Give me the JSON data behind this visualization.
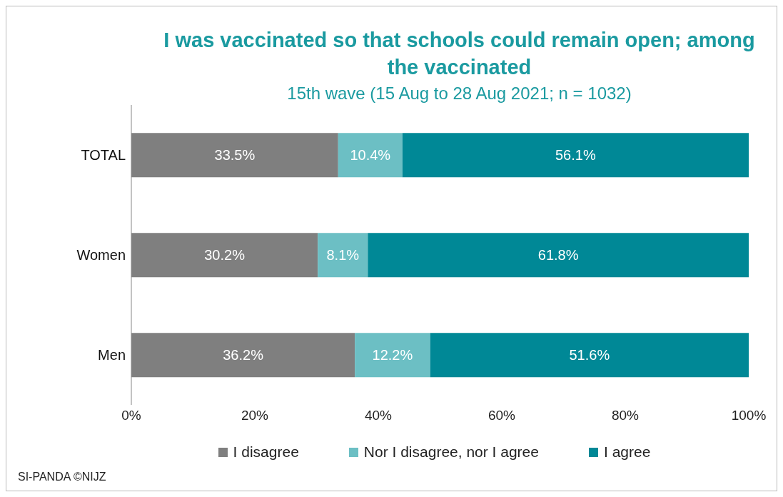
{
  "chart_data": {
    "type": "bar",
    "orientation": "horizontal",
    "stacked": true,
    "title": "I was vaccinated so that schools could remain open; among the vaccinated",
    "subtitle": "15th wave (15 Aug to 28 Aug 2021; n = 1032)",
    "categories": [
      "TOTAL",
      "Women",
      "Men"
    ],
    "series": [
      {
        "name": "I disagree",
        "color": "#7f7f7f",
        "values": [
          33.5,
          30.2,
          36.2
        ],
        "value_labels": [
          "33.5%",
          "30.2%",
          "36.2%"
        ]
      },
      {
        "name": "Nor I disagree, nor I agree",
        "color": "#6cbfc4",
        "values": [
          10.4,
          8.1,
          12.2
        ],
        "value_labels": [
          "10.4%",
          "8.1%",
          "12.2%"
        ]
      },
      {
        "name": "I agree",
        "color": "#008896",
        "values": [
          56.1,
          61.8,
          51.6
        ],
        "value_labels": [
          "56.1%",
          "61.8%",
          "51.6%"
        ]
      }
    ],
    "xlim": [
      0,
      100
    ],
    "xticks": [
      {
        "value": 0,
        "label": "0%"
      },
      {
        "value": 20,
        "label": "20%"
      },
      {
        "value": 40,
        "label": "40%"
      },
      {
        "value": 60,
        "label": "60%"
      },
      {
        "value": 80,
        "label": "80%"
      },
      {
        "value": 100,
        "label": "100%"
      }
    ],
    "grid": false,
    "legend": "bottom",
    "annotations": [
      "SI-PANDA ©NIJZ"
    ]
  }
}
